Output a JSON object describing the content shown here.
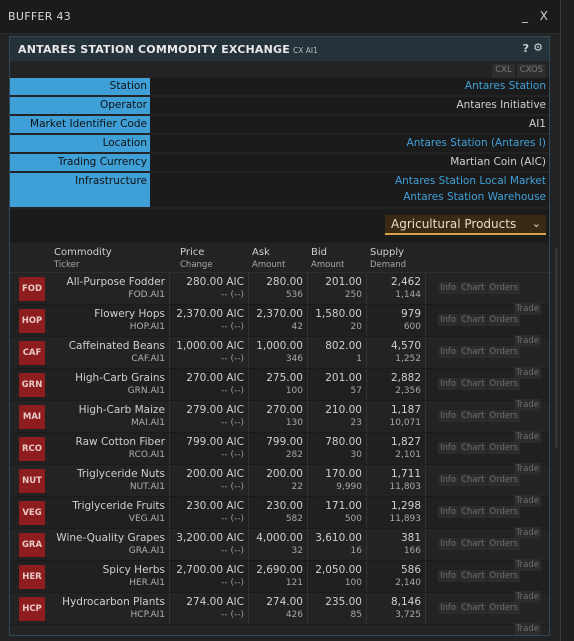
{
  "window": {
    "title": "BUFFER 43",
    "min_label": "_",
    "close_label": "X"
  },
  "panel": {
    "title": "ANTARES STATION COMMODITY EXCHANGE",
    "code": "CX AI1",
    "help": "?",
    "gear": "⚙"
  },
  "cx_buttons": [
    "CXL",
    "CXOS"
  ],
  "info": {
    "station_label": "Station",
    "station_value": "Antares Station",
    "operator_label": "Operator",
    "operator_value": "Antares Initiative",
    "mic_label": "Market Identifier Code",
    "mic_value": "AI1",
    "location_label": "Location",
    "location_value": "Antares Station (Antares I)",
    "currency_label": "Trading Currency",
    "currency_value": "Martian Coin (AIC)",
    "infra_label": "Infrastructure",
    "infra_value1": "Antares Station Local Market",
    "infra_value2": "Antares Station Warehouse"
  },
  "category": {
    "selected": "Agricultural Products",
    "chevron": "⌄"
  },
  "headers": {
    "commodity": "Commodity",
    "ticker": "Ticker",
    "price": "Price",
    "change": "Change",
    "ask": "Ask",
    "ask_sub": "Amount",
    "bid": "Bid",
    "bid_sub": "Amount",
    "supply": "Supply",
    "demand": "Demand"
  },
  "actions": {
    "info": "Info",
    "chart": "Chart",
    "orders": "Orders",
    "trade": "Trade"
  },
  "rows": [
    {
      "code": "FOD",
      "name": "All-Purpose Fodder",
      "ticker": "FOD.AI1",
      "price": "280.00 AIC",
      "change": "-- (--)",
      "ask": "280.00",
      "ask_amt": "536",
      "bid": "201.00",
      "bid_amt": "250",
      "supply": "2,462",
      "demand": "1,144"
    },
    {
      "code": "HOP",
      "name": "Flowery Hops",
      "ticker": "HOP.AI1",
      "price": "2,370.00 AIC",
      "change": "-- (--)",
      "ask": "2,370.00",
      "ask_amt": "42",
      "bid": "1,580.00",
      "bid_amt": "20",
      "supply": "979",
      "demand": "600"
    },
    {
      "code": "CAF",
      "name": "Caffeinated Beans",
      "ticker": "CAF.AI1",
      "price": "1,000.00 AIC",
      "change": "-- (--)",
      "ask": "1,000.00",
      "ask_amt": "346",
      "bid": "802.00",
      "bid_amt": "1",
      "supply": "4,570",
      "demand": "1,252"
    },
    {
      "code": "GRN",
      "name": "High-Carb Grains",
      "ticker": "GRN.AI1",
      "price": "270.00 AIC",
      "change": "-- (--)",
      "ask": "275.00",
      "ask_amt": "100",
      "bid": "201.00",
      "bid_amt": "57",
      "supply": "2,882",
      "demand": "2,356"
    },
    {
      "code": "MAI",
      "name": "High-Carb Maize",
      "ticker": "MAI.AI1",
      "price": "279.00 AIC",
      "change": "-- (--)",
      "ask": "270.00",
      "ask_amt": "130",
      "bid": "210.00",
      "bid_amt": "23",
      "supply": "1,187",
      "demand": "10,071"
    },
    {
      "code": "RCO",
      "name": "Raw Cotton Fiber",
      "ticker": "RCO.AI1",
      "price": "799.00 AIC",
      "change": "-- (--)",
      "ask": "799.00",
      "ask_amt": "282",
      "bid": "780.00",
      "bid_amt": "30",
      "supply": "1,827",
      "demand": "2,101"
    },
    {
      "code": "NUT",
      "name": "Triglyceride Nuts",
      "ticker": "NUT.AI1",
      "price": "200.00 AIC",
      "change": "-- (--)",
      "ask": "200.00",
      "ask_amt": "22",
      "bid": "170.00",
      "bid_amt": "9,990",
      "supply": "1,711",
      "demand": "11,803"
    },
    {
      "code": "VEG",
      "name": "Triglyceride Fruits",
      "ticker": "VEG.AI1",
      "price": "230.00 AIC",
      "change": "-- (--)",
      "ask": "230.00",
      "ask_amt": "582",
      "bid": "171.00",
      "bid_amt": "500",
      "supply": "1,298",
      "demand": "11,893"
    },
    {
      "code": "GRA",
      "name": "Wine-Quality Grapes",
      "ticker": "GRA.AI1",
      "price": "3,200.00 AIC",
      "change": "-- (--)",
      "ask": "4,000.00",
      "ask_amt": "32",
      "bid": "3,610.00",
      "bid_amt": "16",
      "supply": "381",
      "demand": "166"
    },
    {
      "code": "HER",
      "name": "Spicy Herbs",
      "ticker": "HER.AI1",
      "price": "2,700.00 AIC",
      "change": "-- (--)",
      "ask": "2,690.00",
      "ask_amt": "121",
      "bid": "2,050.00",
      "bid_amt": "100",
      "supply": "586",
      "demand": "2,140"
    },
    {
      "code": "HCP",
      "name": "Hydrocarbon Plants",
      "ticker": "HCP.AI1",
      "price": "274.00 AIC",
      "change": "-- (--)",
      "ask": "274.00",
      "ask_amt": "426",
      "bid": "235.00",
      "bid_amt": "85",
      "supply": "8,146",
      "demand": "3,725"
    }
  ],
  "colors": {
    "accent": "#3fa0d8",
    "badge": "#8e1e1e",
    "select_border": "#d7a24a"
  }
}
